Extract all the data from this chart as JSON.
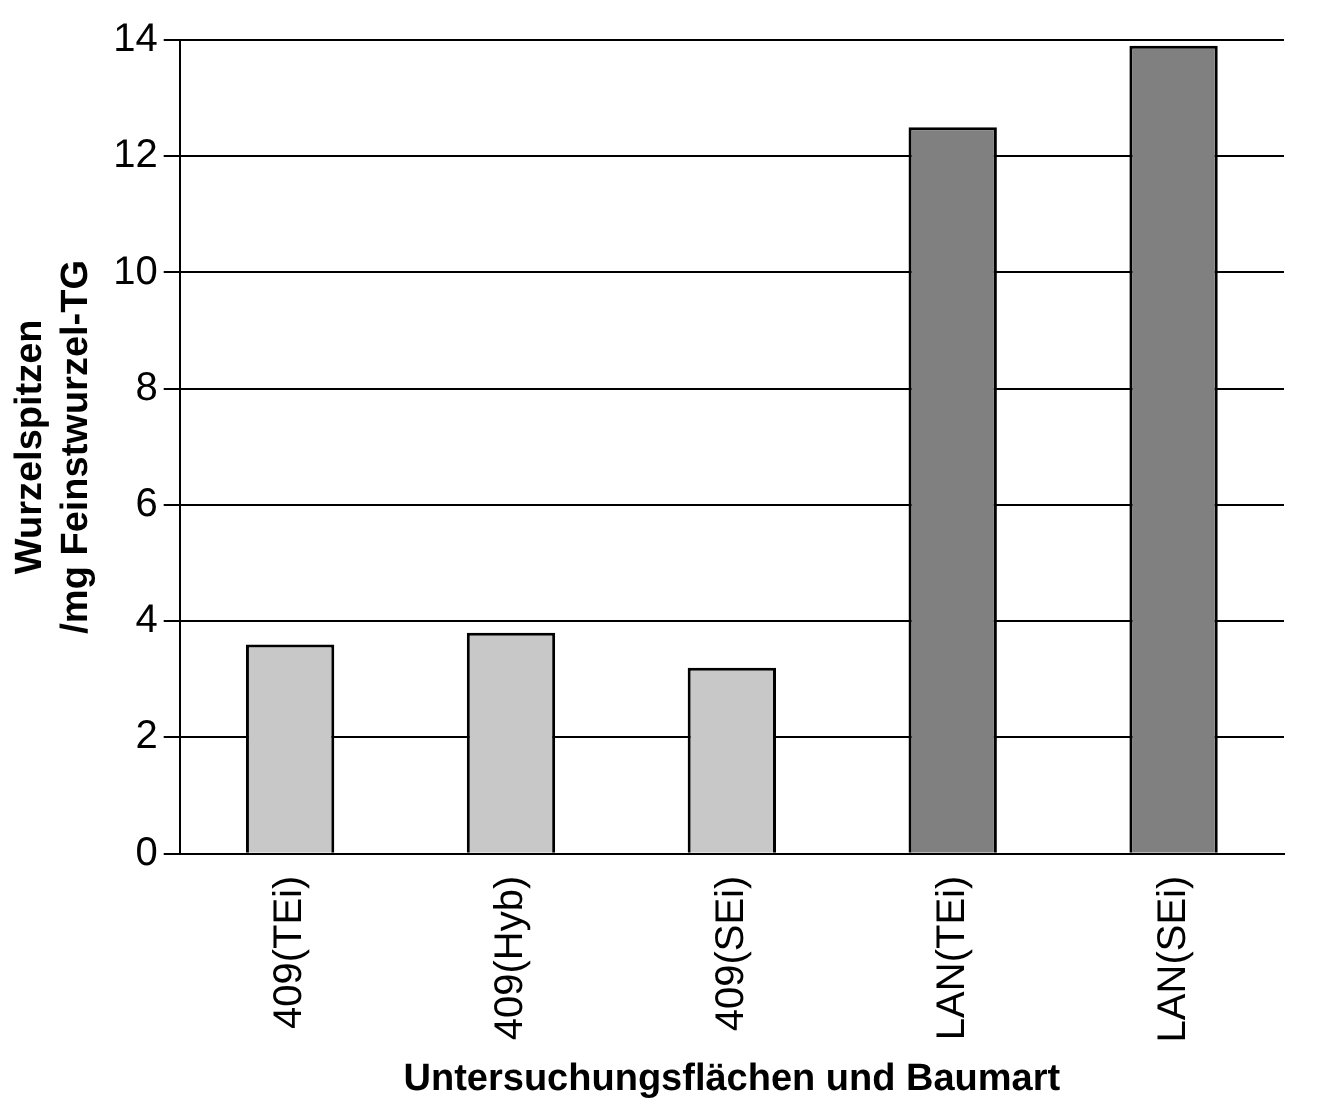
{
  "chart_data": {
    "type": "bar",
    "xlabel": "Untersuchungsflächen und Baumart",
    "ylabel": "Wurzelspitzen\n/mg Feinstwurzel-TG",
    "categories": [
      "409(TEi)",
      "409(Hyb)",
      "409(SEi)",
      "LAN(TEi)",
      "LAN(SEi)"
    ],
    "values": [
      3.6,
      3.8,
      3.2,
      12.5,
      13.9
    ],
    "colors": [
      "#c8c8c8",
      "#c8c8c8",
      "#c8c8c8",
      "#808080",
      "#808080"
    ],
    "ylim": [
      0,
      14
    ],
    "yticks": [
      0,
      2,
      4,
      6,
      8,
      10,
      12,
      14
    ],
    "grid": "y",
    "legend": false
  }
}
